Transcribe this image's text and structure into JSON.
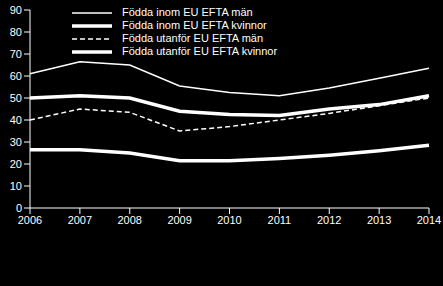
{
  "chart_data": {
    "type": "line",
    "categories": [
      "2006",
      "2007",
      "2008",
      "2009",
      "2010",
      "2011",
      "2012",
      "2013",
      "2014"
    ],
    "series": [
      {
        "name": "Födda inom EU EFTA män",
        "color": "#ffffff",
        "line_style": "solid",
        "values": [
          61,
          66.5,
          65,
          55.5,
          52.5,
          51,
          54.5,
          59,
          63.5
        ]
      },
      {
        "name": "Födda inom EU EFTA kvinnor",
        "color": "#ffffff",
        "line_style": "solid",
        "values": [
          50,
          51,
          50,
          44,
          42.5,
          42,
          45,
          47,
          51
        ]
      },
      {
        "name": "Födda utanför EU EFTA män",
        "color": "#ffffff",
        "line_style": "dashed",
        "values": [
          40,
          45,
          43.5,
          35,
          37,
          40,
          43,
          46.5,
          50
        ]
      },
      {
        "name": "Födda utanför EU EFTA kvinnor",
        "color": "#ffffff",
        "line_style": "solid",
        "values": [
          26.5,
          26.5,
          25,
          21.5,
          21.5,
          22.5,
          24,
          26,
          28.5
        ]
      }
    ],
    "ylim": [
      0,
      90
    ],
    "yticks": [
      0,
      10,
      20,
      30,
      40,
      50,
      60,
      70,
      80,
      90
    ],
    "grid": false,
    "legend": "top"
  }
}
